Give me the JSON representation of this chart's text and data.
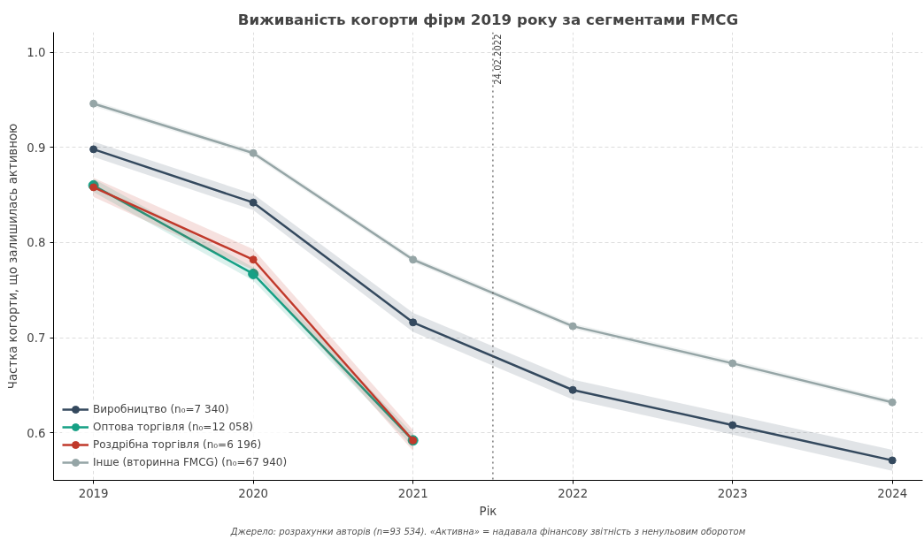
{
  "chart_data": {
    "type": "line",
    "title": "Виживаність когорти фірм 2019 року за сегментами FMCG",
    "xlabel": "Рік",
    "ylabel": "Частка когорти, що залишилась активною",
    "x": [
      2019,
      2020,
      2021,
      2022,
      2023,
      2024
    ],
    "series": [
      {
        "name": "Виробництво (n₀=7 340)",
        "color": "#34495e",
        "values": [
          0.898,
          0.842,
          0.716,
          0.645,
          0.608,
          0.571
        ],
        "lower": [
          0.89,
          0.834,
          0.706,
          0.635,
          0.598,
          0.56
        ],
        "upper": [
          0.906,
          0.851,
          0.726,
          0.656,
          0.619,
          0.582
        ]
      },
      {
        "name": "Оптова торгівля (n₀=12 058)",
        "color": "#16a085",
        "values": [
          0.86,
          0.767,
          0.592,
          null,
          null,
          null
        ],
        "lower": [
          0.853,
          0.76,
          0.585,
          null,
          null,
          null
        ],
        "upper": [
          0.867,
          0.774,
          0.599,
          null,
          null,
          null
        ]
      },
      {
        "name": "Роздрібна торгівля (n₀=6 196)",
        "color": "#c0392b",
        "values": [
          0.858,
          0.782,
          0.592,
          null,
          null,
          null
        ],
        "lower": [
          0.848,
          0.771,
          0.581,
          null,
          null,
          null
        ],
        "upper": [
          0.868,
          0.793,
          0.603,
          null,
          null,
          null
        ]
      },
      {
        "name": "Інше (вторинна FMCG) (n₀=67 940)",
        "color": "#95a5a6",
        "values": [
          0.946,
          0.894,
          0.782,
          0.712,
          0.673,
          0.632
        ],
        "lower": [
          0.943,
          0.891,
          0.779,
          0.709,
          0.67,
          0.629
        ],
        "upper": [
          0.949,
          0.897,
          0.785,
          0.715,
          0.676,
          0.635
        ]
      }
    ],
    "xlim": [
      2018.75,
      2024.19
    ],
    "xticks": [
      2019,
      2020,
      2021,
      2022,
      2023,
      2024
    ],
    "ylim": [
      0.55,
      1.021
    ],
    "yticks": [
      {
        "value": 0.6,
        "label": "0.6"
      },
      {
        "value": 0.7,
        "label": "0.7"
      },
      {
        "value": 0.8,
        "label": "0.8"
      },
      {
        "value": 0.9,
        "label": "0.9"
      },
      {
        "value": 1.0,
        "label": "1.0"
      }
    ],
    "ref_lines": [
      {
        "axis": "x",
        "value": 2021.5,
        "label": "24.02.2022",
        "color": "#555555",
        "line_style": "dotted"
      }
    ],
    "annotations": [
      "Джерело: розрахунки авторів (n=93 534). «Активна» = надавала фінансову звітність з ненульовим оборотом"
    ],
    "grid": true,
    "legend": "bottom left",
    "marker": "circle",
    "line_style": "solid"
  }
}
